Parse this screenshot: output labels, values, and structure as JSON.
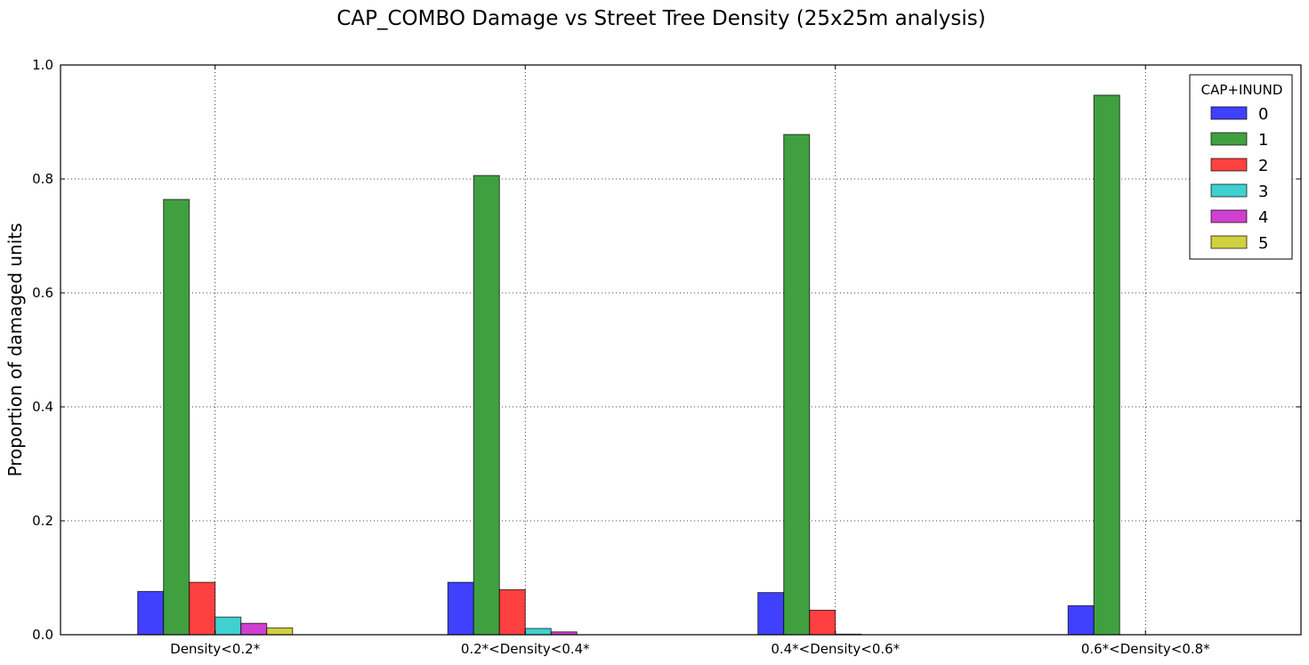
{
  "chart_data": {
    "type": "bar",
    "title": "CAP_COMBO Damage vs Street Tree Density (25x25m analysis)",
    "xlabel": "",
    "ylabel": "Proportion of damaged units",
    "ylim": [
      0,
      1.0
    ],
    "yticks": [
      "0.0",
      "0.2",
      "0.4",
      "0.6",
      "0.8",
      "1.0"
    ],
    "yticks_values": [
      0,
      0.2,
      0.4,
      0.6,
      0.8,
      1.0
    ],
    "categories": [
      "Density<0.2*",
      "0.2*<Density<0.4*",
      "0.4*<Density<0.6*",
      "0.6*<Density<0.8*"
    ],
    "grid": true,
    "legend": {
      "title": "CAP+INUND",
      "placement": "top-right"
    },
    "series": [
      {
        "name": "0",
        "color": "#4040ff",
        "values": [
          0.076,
          0.092,
          0.074,
          0.051
        ]
      },
      {
        "name": "1",
        "color": "#40a040",
        "values": [
          0.764,
          0.806,
          0.878,
          0.947
        ]
      },
      {
        "name": "2",
        "color": "#ff4040",
        "values": [
          0.092,
          0.079,
          0.043,
          0.0
        ]
      },
      {
        "name": "3",
        "color": "#40d0d0",
        "values": [
          0.031,
          0.011,
          0.001,
          0.0
        ]
      },
      {
        "name": "4",
        "color": "#d040d0",
        "values": [
          0.02,
          0.005,
          0.0,
          0.0
        ]
      },
      {
        "name": "5",
        "color": "#d0d040",
        "values": [
          0.012,
          0.0,
          0.0,
          0.0
        ]
      }
    ]
  }
}
